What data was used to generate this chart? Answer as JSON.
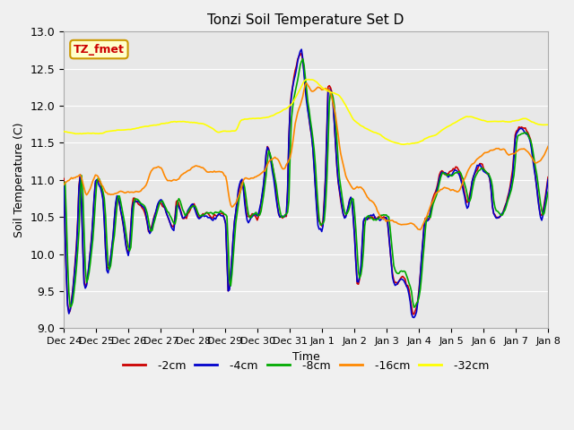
{
  "title": "Tonzi Soil Temperature Set D",
  "xlabel": "Time",
  "ylabel": "Soil Temperature (C)",
  "ylim": [
    9.0,
    13.0
  ],
  "yticks": [
    9.0,
    9.5,
    10.0,
    10.5,
    11.0,
    11.5,
    12.0,
    12.5,
    13.0
  ],
  "xtick_labels": [
    "Dec 24",
    "Dec 25",
    "Dec 26",
    "Dec 27",
    "Dec 28",
    "Dec 29",
    "Dec 30",
    "Dec 31",
    "Jan 1",
    "Jan 2",
    "Jan 3",
    "Jan 4",
    "Jan 5",
    "Jan 6",
    "Jan 7",
    "Jan 8"
  ],
  "series": {
    "-2cm": {
      "color": "#cc0000",
      "lw": 1.2
    },
    "-4cm": {
      "color": "#0000cc",
      "lw": 1.2
    },
    "-8cm": {
      "color": "#00aa00",
      "lw": 1.2
    },
    "-16cm": {
      "color": "#ff8800",
      "lw": 1.2
    },
    "-32cm": {
      "color": "#ffff00",
      "lw": 1.2
    }
  },
  "legend_label": "TZ_fmet",
  "legend_bg": "#ffffcc",
  "legend_border": "#cc9900",
  "legend_text_color": "#cc0000",
  "fig_bg": "#f0f0f0",
  "plot_bg": "#e8e8e8"
}
